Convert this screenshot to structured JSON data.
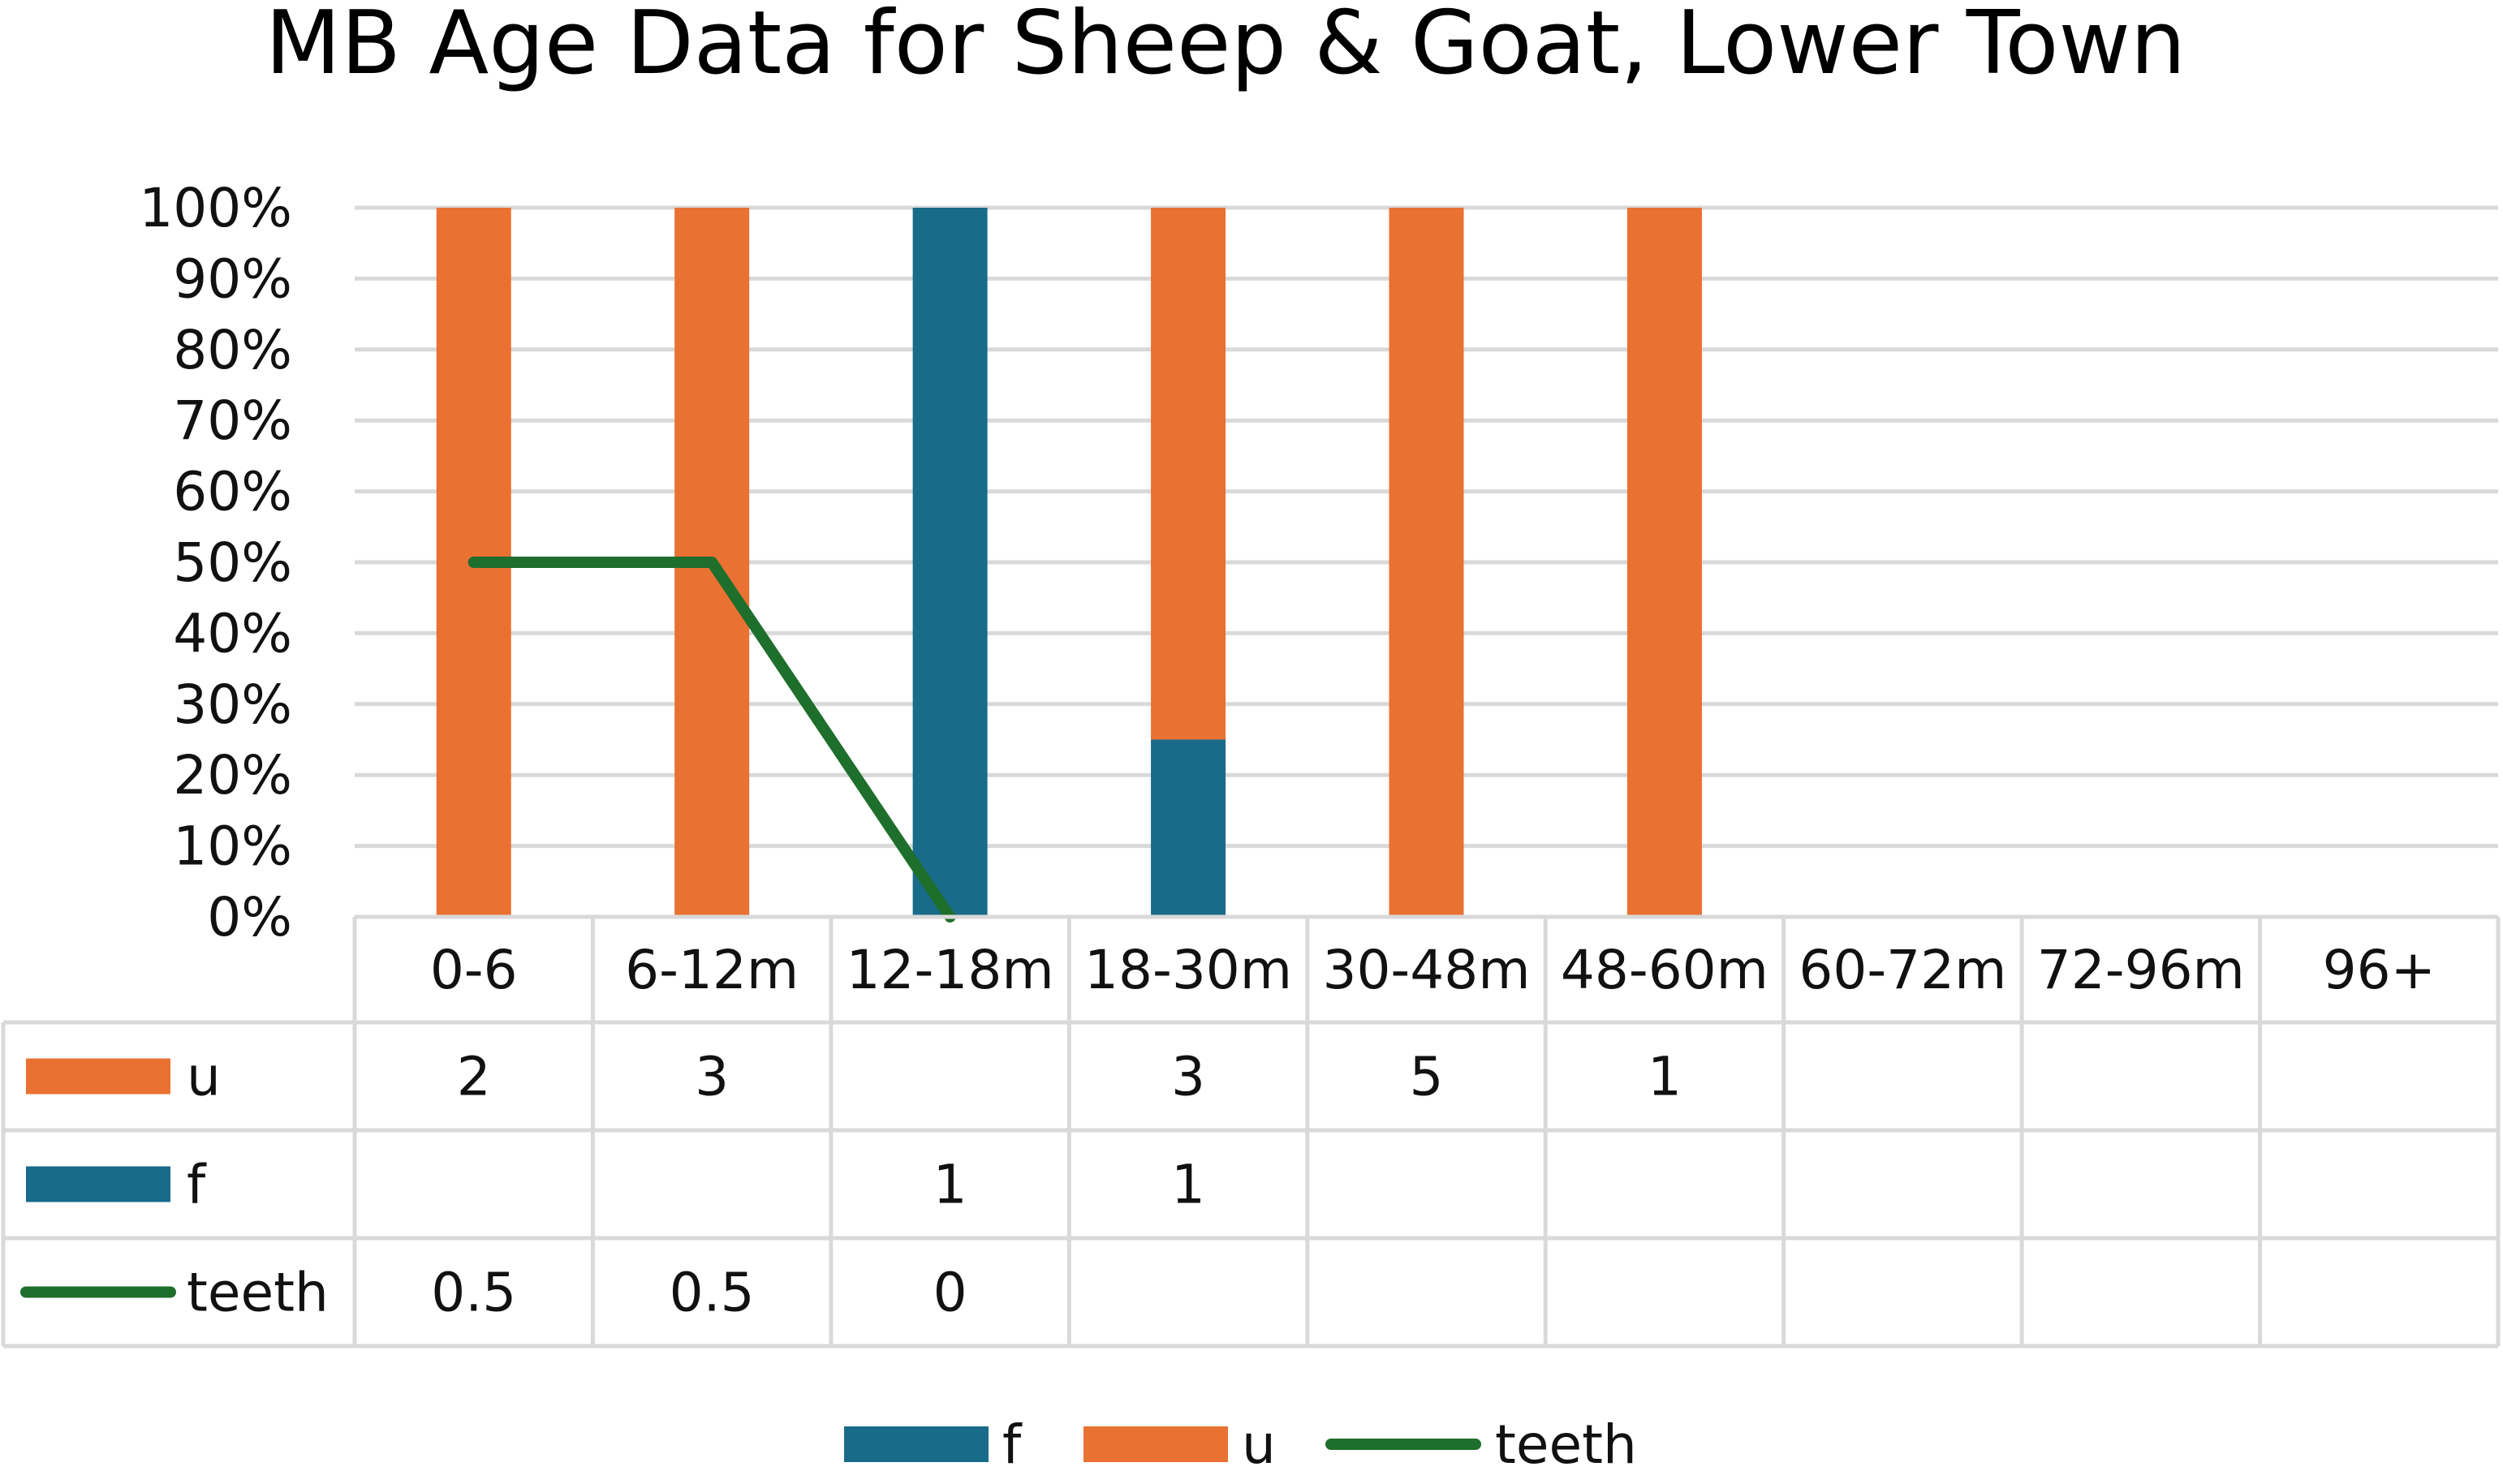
{
  "chart_data": {
    "type": "bar",
    "stacking": "percent",
    "title": "MB Age Data for Sheep & Goat, Lower Town",
    "categories": [
      "0-6",
      "6-12m",
      "12-18m",
      "18-30m",
      "30-48m",
      "48-60m",
      "60-72m",
      "72-96m",
      "96+"
    ],
    "y_ticks": [
      "0%",
      "10%",
      "20%",
      "30%",
      "40%",
      "50%",
      "60%",
      "70%",
      "80%",
      "90%",
      "100%"
    ],
    "ylim": [
      0,
      100
    ],
    "grid": true,
    "legend_position": "bottom",
    "data_table": true,
    "series": [
      {
        "name": "u",
        "kind": "bar",
        "color": "#E97132",
        "values": [
          2,
          3,
          null,
          3,
          5,
          1,
          null,
          null,
          null
        ]
      },
      {
        "name": "f",
        "kind": "bar",
        "color": "#196B8A",
        "values": [
          null,
          null,
          1,
          1,
          null,
          null,
          null,
          null,
          null
        ]
      },
      {
        "name": "teeth",
        "kind": "line",
        "color": "#1E6E2C",
        "values": [
          0.5,
          0.5,
          0,
          null,
          null,
          null,
          null,
          null,
          null
        ]
      }
    ],
    "legend_order": [
      "f",
      "u",
      "teeth"
    ]
  }
}
